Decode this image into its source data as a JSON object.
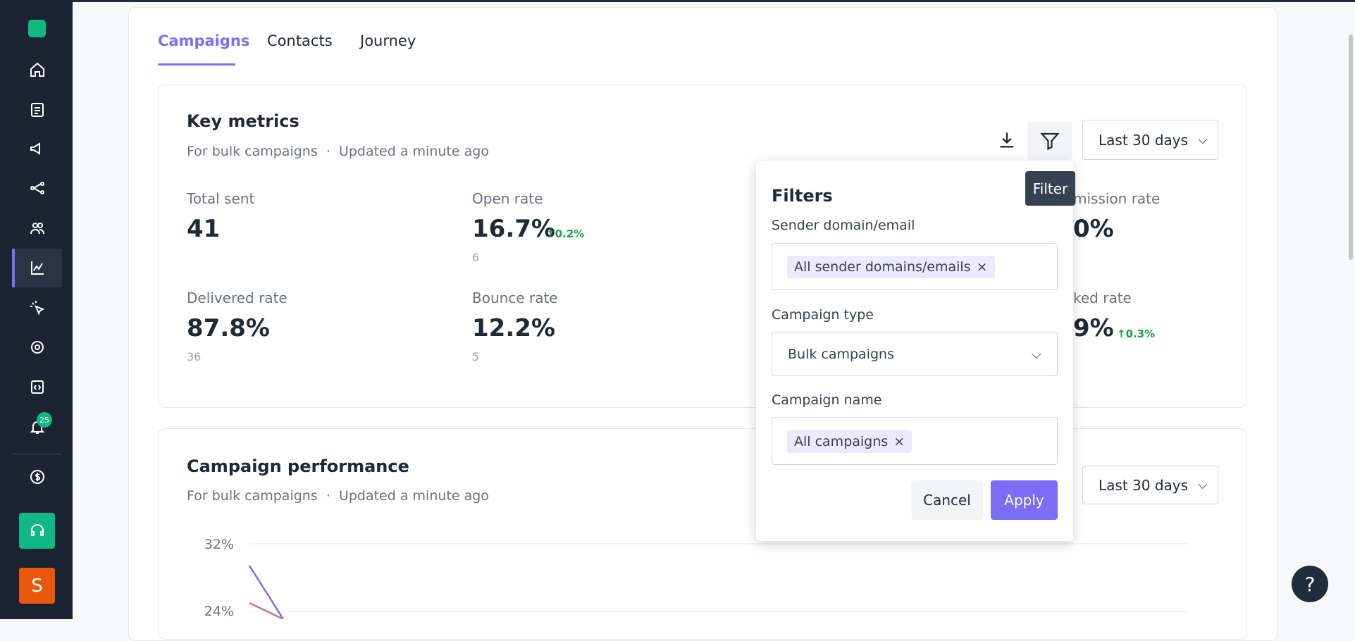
{
  "sidebar": {
    "notification_badge": "25",
    "avatar": "S"
  },
  "tabs": [
    "Campaigns",
    "Contacts",
    "Journey"
  ],
  "key_metrics": {
    "title": "Key metrics",
    "subtitle": "For bulk campaigns",
    "updated": "Updated a minute ago",
    "date_range": "Last 30 days",
    "metrics": [
      {
        "label": "Total sent",
        "value": "41"
      },
      {
        "label": "Open rate",
        "value": "16.7%",
        "change": "0.2%",
        "count": "6"
      },
      {
        "label": "mission rate",
        "value": "0%"
      },
      {
        "label": "Delivered rate",
        "value": "87.8%",
        "count": "36"
      },
      {
        "label": "Bounce rate",
        "value": "12.2%",
        "count": "5"
      },
      {
        "label": "ked rate",
        "value": "9%",
        "change": "0.3%"
      }
    ]
  },
  "tooltip": "Filter",
  "filters": {
    "title": "Filters",
    "sender_label": "Sender domain/email",
    "sender_chip": "All sender domains/emails",
    "type_label": "Campaign type",
    "type_value": "Bulk campaigns",
    "name_label": "Campaign name",
    "name_chip": "All campaigns",
    "cancel": "Cancel",
    "apply": "Apply"
  },
  "campaign_performance": {
    "title": "Campaign performance",
    "subtitle": "For bulk campaigns",
    "updated": "Updated a minute ago",
    "date_range": "Last 30 days",
    "y_tick_labels": [
      "32%",
      "24%"
    ]
  },
  "help": "?"
}
